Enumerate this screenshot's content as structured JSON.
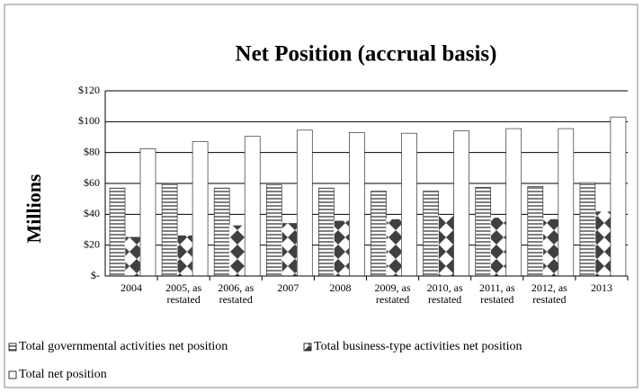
{
  "chart_data": {
    "type": "bar",
    "title": "Net Position (accrual basis)",
    "y_label": "Millions",
    "categories": [
      "2004",
      "2005, as restated",
      "2006, as restated",
      "2007",
      "2008",
      "2009, as restated",
      "2010, as restated",
      "2011, as restated",
      "2012, as restated",
      "2013"
    ],
    "series": [
      {
        "name": "Total governmental activities net position",
        "color": "#808080",
        "values": [
          57,
          60,
          57,
          59,
          57,
          55,
          55,
          57.5,
          58,
          60.5
        ]
      },
      {
        "name": "Total business-type activities net position",
        "color": "#404040",
        "values": [
          25.5,
          26.5,
          33,
          34.5,
          36,
          37,
          39,
          38,
          37,
          42
        ]
      },
      {
        "name": "Total net position",
        "color": "#ffffff",
        "values": [
          82.5,
          87,
          90.5,
          94.5,
          93,
          92.5,
          94,
          95.5,
          95.5,
          103
        ]
      }
    ],
    "ylim": [
      0,
      120
    ],
    "yticks": [
      {
        "value": 0,
        "label": "$-"
      },
      {
        "value": 20,
        "label": "$20"
      },
      {
        "value": 40,
        "label": "$40"
      },
      {
        "value": 60,
        "label": "$60"
      },
      {
        "value": 80,
        "label": "$80"
      },
      {
        "value": 100,
        "label": "$100"
      },
      {
        "value": 120,
        "label": "$120"
      }
    ],
    "grid": true,
    "legend": "bottom"
  }
}
